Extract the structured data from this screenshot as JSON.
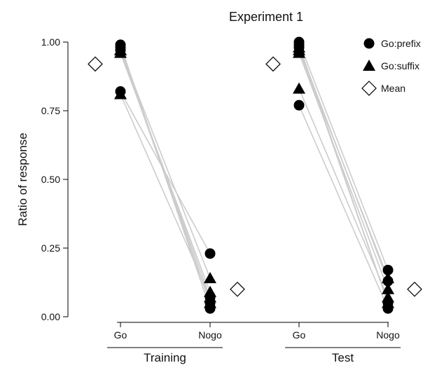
{
  "chart_data": {
    "type": "scatter",
    "title": "Experiment 1",
    "ylabel": "Ratio of response",
    "ylim": [
      0,
      1
    ],
    "yticks": [
      "0.00",
      "0.25",
      "0.50",
      "0.75",
      "1.00"
    ],
    "panels": [
      {
        "label": "Training",
        "categories": [
          "Go",
          "Nogo"
        ],
        "subjects": [
          {
            "series": "Go:prefix",
            "go": 0.99,
            "nogo": 0.03
          },
          {
            "series": "Go:prefix",
            "go": 0.98,
            "nogo": 0.05
          },
          {
            "series": "Go:prefix",
            "go": 0.82,
            "nogo": 0.23
          },
          {
            "series": "Go:prefix",
            "go": 0.97,
            "nogo": 0.07
          },
          {
            "series": "Go:suffix",
            "go": 0.97,
            "nogo": 0.14
          },
          {
            "series": "Go:suffix",
            "go": 0.96,
            "nogo": 0.09
          },
          {
            "series": "Go:suffix",
            "go": 0.81,
            "nogo": 0.07
          },
          {
            "series": "Go:suffix",
            "go": 0.97,
            "nogo": 0.05
          }
        ],
        "mean": {
          "go": 0.92,
          "nogo": 0.1
        }
      },
      {
        "label": "Test",
        "categories": [
          "Go",
          "Nogo"
        ],
        "subjects": [
          {
            "series": "Go:prefix",
            "go": 1.0,
            "nogo": 0.17
          },
          {
            "series": "Go:prefix",
            "go": 0.99,
            "nogo": 0.05
          },
          {
            "series": "Go:prefix",
            "go": 0.77,
            "nogo": 0.03
          },
          {
            "series": "Go:prefix",
            "go": 0.98,
            "nogo": 0.13
          },
          {
            "series": "Go:suffix",
            "go": 0.97,
            "nogo": 0.14
          },
          {
            "series": "Go:suffix",
            "go": 0.96,
            "nogo": 0.1
          },
          {
            "series": "Go:suffix",
            "go": 0.83,
            "nogo": 0.07
          },
          {
            "series": "Go:suffix",
            "go": 0.98,
            "nogo": 0.05
          }
        ],
        "mean": {
          "go": 0.92,
          "nogo": 0.1
        }
      }
    ],
    "legend": {
      "position": "top-right",
      "entries": [
        {
          "label": "Go:prefix",
          "marker": "filled-circle"
        },
        {
          "label": "Go:suffix",
          "marker": "filled-triangle"
        },
        {
          "label": "Mean",
          "marker": "open-diamond"
        }
      ]
    },
    "colors": {
      "points": "#000000",
      "connectors": "#cccccc",
      "axis": "#000000"
    }
  }
}
